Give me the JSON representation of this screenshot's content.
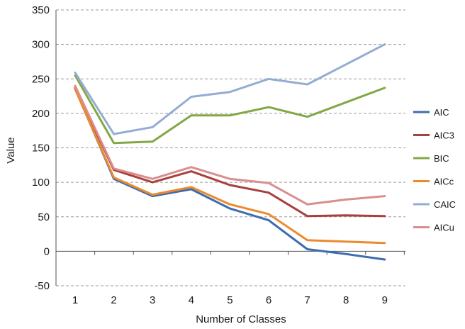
{
  "chart_data": {
    "type": "line",
    "title": "",
    "xlabel": "Number of Classes",
    "ylabel": "Value",
    "x": [
      1,
      2,
      3,
      4,
      5,
      6,
      7,
      8,
      9
    ],
    "ylim": [
      -50,
      350
    ],
    "yticks": [
      -50,
      0,
      50,
      100,
      150,
      200,
      250,
      300,
      350
    ],
    "grid": "horizontal dashed",
    "legend_position": "right",
    "series": [
      {
        "name": "AIC",
        "color": "#3d6db0",
        "values": [
          236,
          105,
          80,
          90,
          62,
          45,
          3,
          -4,
          -12
        ]
      },
      {
        "name": "AIC3",
        "color": "#a8403c",
        "values": [
          237,
          118,
          100,
          116,
          96,
          85,
          51,
          52,
          51
        ]
      },
      {
        "name": "BIC",
        "color": "#82a846",
        "values": [
          255,
          157,
          159,
          197,
          197,
          209,
          195,
          216,
          237
        ]
      },
      {
        "name": "AICc",
        "color": "#ec8a2d",
        "values": [
          235,
          107,
          82,
          93,
          68,
          54,
          16,
          14,
          12
        ]
      },
      {
        "name": "CAIC",
        "color": "#94acd4",
        "values": [
          259,
          170,
          180,
          224,
          231,
          250,
          242,
          271,
          300
        ]
      },
      {
        "name": "AICu",
        "color": "#d98e8e",
        "values": [
          240,
          120,
          105,
          122,
          105,
          99,
          68,
          75,
          80
        ]
      }
    ]
  }
}
